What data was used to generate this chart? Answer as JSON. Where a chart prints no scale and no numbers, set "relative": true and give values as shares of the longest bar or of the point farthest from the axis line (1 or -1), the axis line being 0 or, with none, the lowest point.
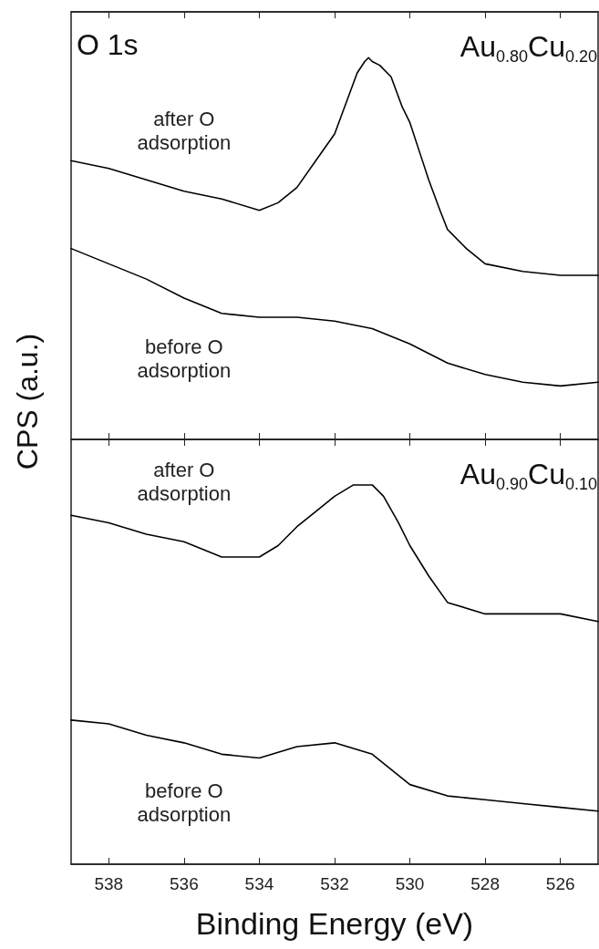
{
  "chart_data": [
    {
      "type": "line",
      "relative": true,
      "title": "O 1s",
      "ylabel": "CPS (a.u.)",
      "annotations": [
        "Au$_{0.80}$Cu$_{0.20}$"
      ],
      "xlim": [
        539,
        525
      ],
      "xticks": [
        538,
        536,
        534,
        532,
        530,
        528,
        526
      ],
      "tick_labels": false,
      "series": [
        {
          "name": "after O\nadsorption",
          "color": "#000000",
          "x": [
            539,
            538,
            537,
            536,
            535,
            534,
            533.5,
            533,
            532.5,
            532,
            531.7,
            531.4,
            531.2,
            531.1,
            531,
            530.8,
            530.5,
            530.2,
            530,
            529.7,
            529.5,
            529.2,
            529,
            528.5,
            528,
            527,
            526,
            525
          ],
          "values": [
            0.73,
            0.71,
            0.68,
            0.65,
            0.63,
            0.6,
            0.62,
            0.66,
            0.73,
            0.8,
            0.88,
            0.96,
            0.99,
            1,
            0.99,
            0.98,
            0.95,
            0.87,
            0.83,
            0.74,
            0.68,
            0.6,
            0.55,
            0.5,
            0.46,
            0.44,
            0.43,
            0.43
          ]
        },
        {
          "name": "before O\nadsorption",
          "color": "#000000",
          "x": [
            539,
            538,
            537,
            536,
            535,
            534,
            533,
            532,
            531,
            530,
            529,
            528,
            527,
            526,
            525
          ],
          "values": [
            0.5,
            0.46,
            0.42,
            0.37,
            0.33,
            0.32,
            0.32,
            0.31,
            0.29,
            0.25,
            0.2,
            0.17,
            0.15,
            0.14,
            0.15
          ]
        }
      ]
    },
    {
      "type": "line",
      "relative": true,
      "xlabel": "Binding Energy (eV)",
      "annotations": [
        "Au$_{0.90}$Cu$_{0.10}$"
      ],
      "xlim": [
        539,
        525
      ],
      "xticks": [
        538,
        536,
        534,
        532,
        530,
        528,
        526
      ],
      "tick_labels": "x",
      "series": [
        {
          "name": "after O\nadsorption",
          "color": "#000000",
          "x": [
            539,
            538,
            537,
            536,
            535,
            534,
            533.5,
            533,
            532.5,
            532,
            531.5,
            531,
            530.7,
            530.3,
            530,
            529.5,
            529,
            528,
            527,
            526,
            525
          ],
          "values": [
            0.92,
            0.9,
            0.87,
            0.85,
            0.81,
            0.81,
            0.84,
            0.89,
            0.93,
            0.97,
            1,
            1,
            0.97,
            0.9,
            0.84,
            0.76,
            0.69,
            0.66,
            0.66,
            0.66,
            0.64
          ]
        },
        {
          "name": "before O\nadsorption",
          "color": "#000000",
          "x": [
            539,
            538,
            537,
            536,
            535,
            534,
            533,
            532,
            531,
            530,
            529,
            528,
            527,
            526,
            525
          ],
          "values": [
            0.38,
            0.37,
            0.34,
            0.32,
            0.29,
            0.28,
            0.31,
            0.32,
            0.29,
            0.21,
            0.18,
            0.17,
            0.16,
            0.15,
            0.14
          ]
        }
      ]
    }
  ]
}
